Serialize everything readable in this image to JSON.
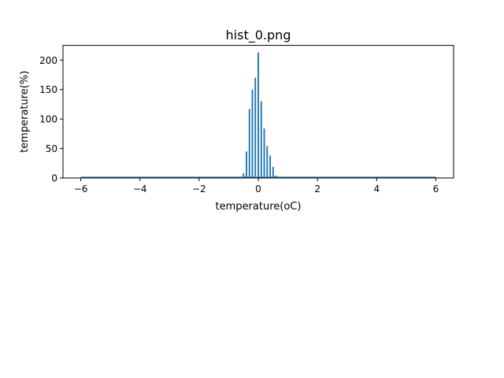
{
  "chart_data": {
    "type": "bar",
    "title": "hist_0.png",
    "xlabel": "temperature(oC)",
    "ylabel": "temperature(%)",
    "xlim": [
      -6.6,
      6.6
    ],
    "ylim": [
      0,
      225
    ],
    "x_ticks": [
      -6,
      -4,
      -2,
      0,
      2,
      4,
      6
    ],
    "x_tick_labels": [
      "−6",
      "−4",
      "−2",
      "0",
      "2",
      "4",
      "6"
    ],
    "y_ticks": [
      0,
      50,
      100,
      150,
      200
    ],
    "y_tick_labels": [
      "0",
      "50",
      "100",
      "150",
      "200"
    ],
    "grid": false,
    "legend": "none",
    "bar_color": "#1f77b4",
    "bar_width": 0.05,
    "baseline_range": [
      -6,
      6
    ],
    "x": [
      -0.6,
      -0.5,
      -0.4,
      -0.3,
      -0.2,
      -0.1,
      0.0,
      0.1,
      0.2,
      0.3,
      0.4,
      0.5,
      0.6
    ],
    "values": [
      2,
      8,
      45,
      117,
      150,
      170,
      213,
      130,
      84,
      54,
      38,
      19,
      4
    ]
  }
}
